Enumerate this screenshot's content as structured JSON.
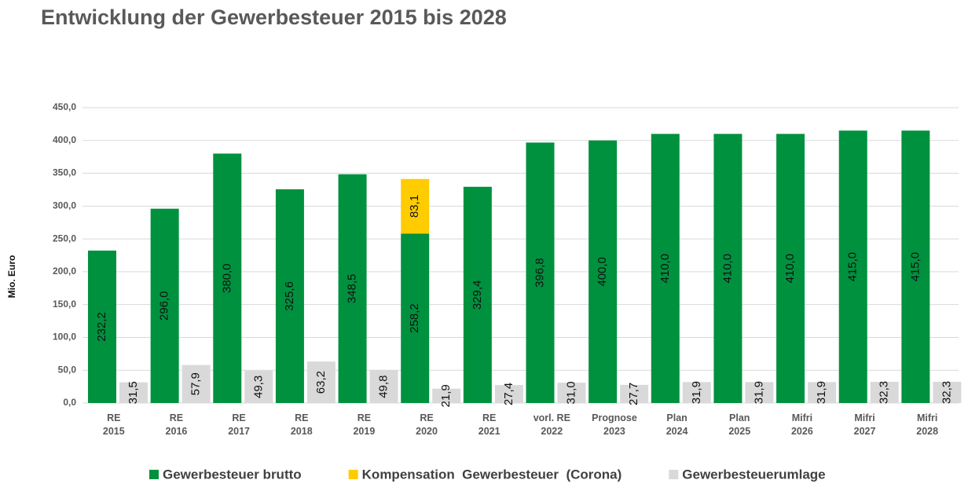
{
  "chart_data": {
    "type": "bar",
    "title": "Entwicklung der Gewerbesteuer 2015 bis 2028",
    "ylabel": "Mio. Euro",
    "categories": [
      "RE 2015",
      "RE 2016",
      "RE 2017",
      "RE 2018",
      "RE 2019",
      "RE 2020",
      "RE 2021",
      "vorl. RE 2022",
      "Prognose 2023",
      "Plan 2024",
      "Plan 2025",
      "Mifri 2026",
      "Mifri 2027",
      "Mifri 2028"
    ],
    "series": [
      {
        "name": "Gewerbesteuer brutto",
        "color": "#00913f",
        "values": [
          232.2,
          296.0,
          380.0,
          325.6,
          348.5,
          258.2,
          329.4,
          396.8,
          400.0,
          410.0,
          410.0,
          410.0,
          415.0,
          415.0
        ],
        "value_labels": [
          "232,2",
          "296,0",
          "380,0",
          "325,6",
          "348,5",
          "258,2",
          "329,4",
          "396,8",
          "400,0",
          "410,0",
          "410,0",
          "410,0",
          "415,0",
          "415,0"
        ]
      },
      {
        "name": "Kompensation  Gewerbesteuer  (Corona)",
        "color": "#ffcc00",
        "stacked_on": 0,
        "values": [
          null,
          null,
          null,
          null,
          null,
          83.1,
          null,
          null,
          null,
          null,
          null,
          null,
          null,
          null
        ],
        "value_labels": [
          null,
          null,
          null,
          null,
          null,
          "83,1",
          null,
          null,
          null,
          null,
          null,
          null,
          null,
          null
        ]
      },
      {
        "name": "Gewerbesteuerumlage",
        "color": "#d9d9d9",
        "values": [
          31.5,
          57.9,
          49.3,
          63.2,
          49.8,
          21.9,
          27.4,
          31.0,
          27.7,
          31.9,
          31.9,
          31.9,
          32.3,
          32.3
        ],
        "value_labels": [
          "31,5",
          "57,9",
          "49,3",
          "63,2",
          "49,8",
          "21,9",
          "27,4",
          "31,0",
          "27,7",
          "31,9",
          "31,9",
          "31,9",
          "32,3",
          "32,3"
        ]
      }
    ],
    "ylim": [
      0,
      450
    ],
    "yticks": [
      {
        "value": 0,
        "label": "0,0"
      },
      {
        "value": 50,
        "label": "50,0"
      },
      {
        "value": 100,
        "label": "100,0"
      },
      {
        "value": 150,
        "label": "150,0"
      },
      {
        "value": 200,
        "label": "200,0"
      },
      {
        "value": 250,
        "label": "250,0"
      },
      {
        "value": 300,
        "label": "300,0"
      },
      {
        "value": 350,
        "label": "350,0"
      },
      {
        "value": 400,
        "label": "400,0"
      },
      {
        "value": 450,
        "label": "450,0"
      }
    ],
    "grid": true,
    "legend": "bottom"
  }
}
